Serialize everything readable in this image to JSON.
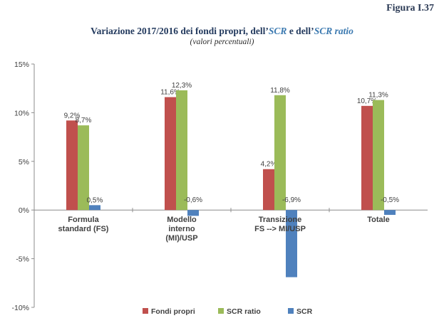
{
  "figure_label": "Figura I.37",
  "title": {
    "part1": "Variazione 2017/2016 dei fondi propri, dell’",
    "em1": "SCR",
    "part2": " e dell’",
    "em2": "SCR ratio",
    "subtitle": "(valori percentuali)"
  },
  "colors": {
    "fondi_propri": "#c0504d",
    "scr_ratio": "#9bbb59",
    "scr": "#4f81bd",
    "grid": "#d9d9d9",
    "axis": "#8c8c8c",
    "text": "#404040"
  },
  "chart_data": {
    "type": "bar",
    "categories": [
      [
        "Formula",
        "standard (FS)"
      ],
      [
        "Modello",
        "interno",
        "(MI)/USP"
      ],
      [
        "Transizione",
        "FS --> MI/USP"
      ],
      [
        "Totale"
      ]
    ],
    "series": [
      {
        "name": "Fondi propri",
        "color_key": "fondi_propri",
        "values": [
          9.2,
          11.6,
          4.2,
          10.7
        ],
        "labels": [
          "9,2%",
          "11,6%",
          "4,2%",
          "10,7%"
        ]
      },
      {
        "name": "SCR ratio",
        "color_key": "scr_ratio",
        "values": [
          8.7,
          12.3,
          11.8,
          11.3
        ],
        "labels": [
          "8,7%",
          "12,3%",
          "11,8%",
          "11,3%"
        ]
      },
      {
        "name": "SCR",
        "color_key": "scr",
        "values": [
          0.5,
          -0.6,
          -6.9,
          -0.5
        ],
        "labels": [
          "0,5%",
          "-0,6%",
          "-6,9%",
          "-0,5%"
        ]
      }
    ],
    "ylim": [
      -10,
      15
    ],
    "yticks": [
      15,
      10,
      5,
      0,
      -5,
      -10
    ],
    "ytick_labels": [
      "15%",
      "10%",
      "5%",
      "0%",
      "-5%",
      "-10%"
    ],
    "grid": false,
    "legend_position": "bottom"
  }
}
